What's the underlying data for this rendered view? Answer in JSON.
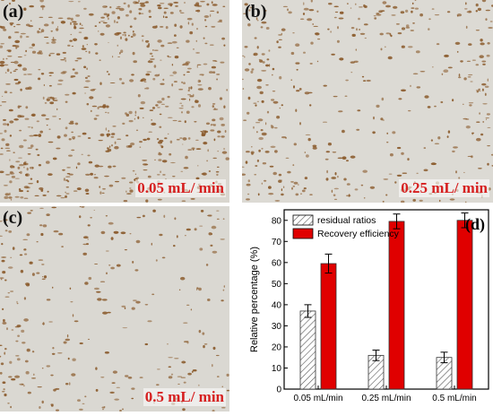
{
  "panels": {
    "a": {
      "label": "(a)",
      "rate": "0.05 mL/ min"
    },
    "b": {
      "label": "(b)",
      "rate": "0.25 mL/ min"
    },
    "c": {
      "label": "(c)",
      "rate": "0.5 mL/ min"
    },
    "d": {
      "label": "(d)"
    }
  },
  "colors": {
    "recovery": "#e00000",
    "residual": "#bfbfbf",
    "stain": "#8a5a2b",
    "paper": "#d9d6cf"
  },
  "chart_data": {
    "type": "bar",
    "categories": [
      "0.05 mL/min",
      "0.25 mL/min",
      "0.5 mL/min"
    ],
    "series": [
      {
        "name": "residual ratios",
        "values": [
          37,
          16,
          15
        ],
        "errors": [
          3,
          2.5,
          2.5
        ],
        "pattern": "hatched"
      },
      {
        "name": "Recovery efficiency",
        "values": [
          59.5,
          79.5,
          80
        ],
        "errors": [
          4.5,
          3.5,
          3.5
        ],
        "pattern": "solid-red"
      }
    ],
    "ylabel": "Relative percentage (%)",
    "xlabel": "",
    "ylim": [
      0,
      85
    ],
    "yticks": [
      0,
      10,
      20,
      30,
      40,
      50,
      60,
      70,
      80
    ],
    "legend": "top-left"
  }
}
